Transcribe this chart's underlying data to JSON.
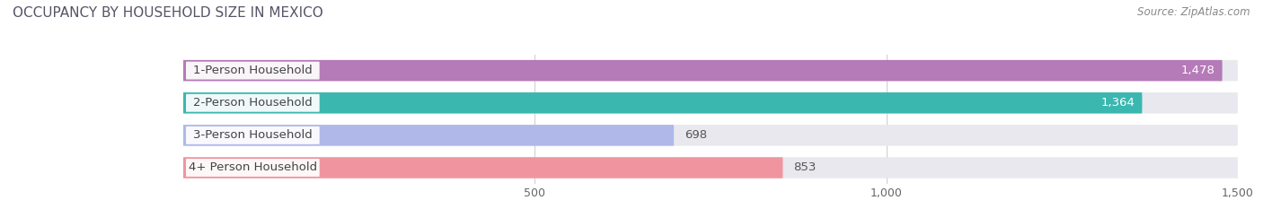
{
  "title": "OCCUPANCY BY HOUSEHOLD SIZE IN MEXICO",
  "source": "Source: ZipAtlas.com",
  "categories": [
    "1-Person Household",
    "2-Person Household",
    "3-Person Household",
    "4+ Person Household"
  ],
  "values": [
    1478,
    1364,
    698,
    853
  ],
  "bar_colors": [
    "#b57ab8",
    "#3ab8b0",
    "#b0b8ea",
    "#f095a0"
  ],
  "bar_bg_color": "#e8e8ee",
  "xlim_max": 1500,
  "xticks": [
    500,
    1000,
    1500
  ],
  "title_fontsize": 11,
  "source_fontsize": 8.5,
  "label_fontsize": 9.5,
  "value_fontsize": 9.5,
  "tick_fontsize": 9,
  "background_color": "#ffffff",
  "title_color": "#555566",
  "source_color": "#888888",
  "label_color": "#444444",
  "grid_color": "#cccccc"
}
